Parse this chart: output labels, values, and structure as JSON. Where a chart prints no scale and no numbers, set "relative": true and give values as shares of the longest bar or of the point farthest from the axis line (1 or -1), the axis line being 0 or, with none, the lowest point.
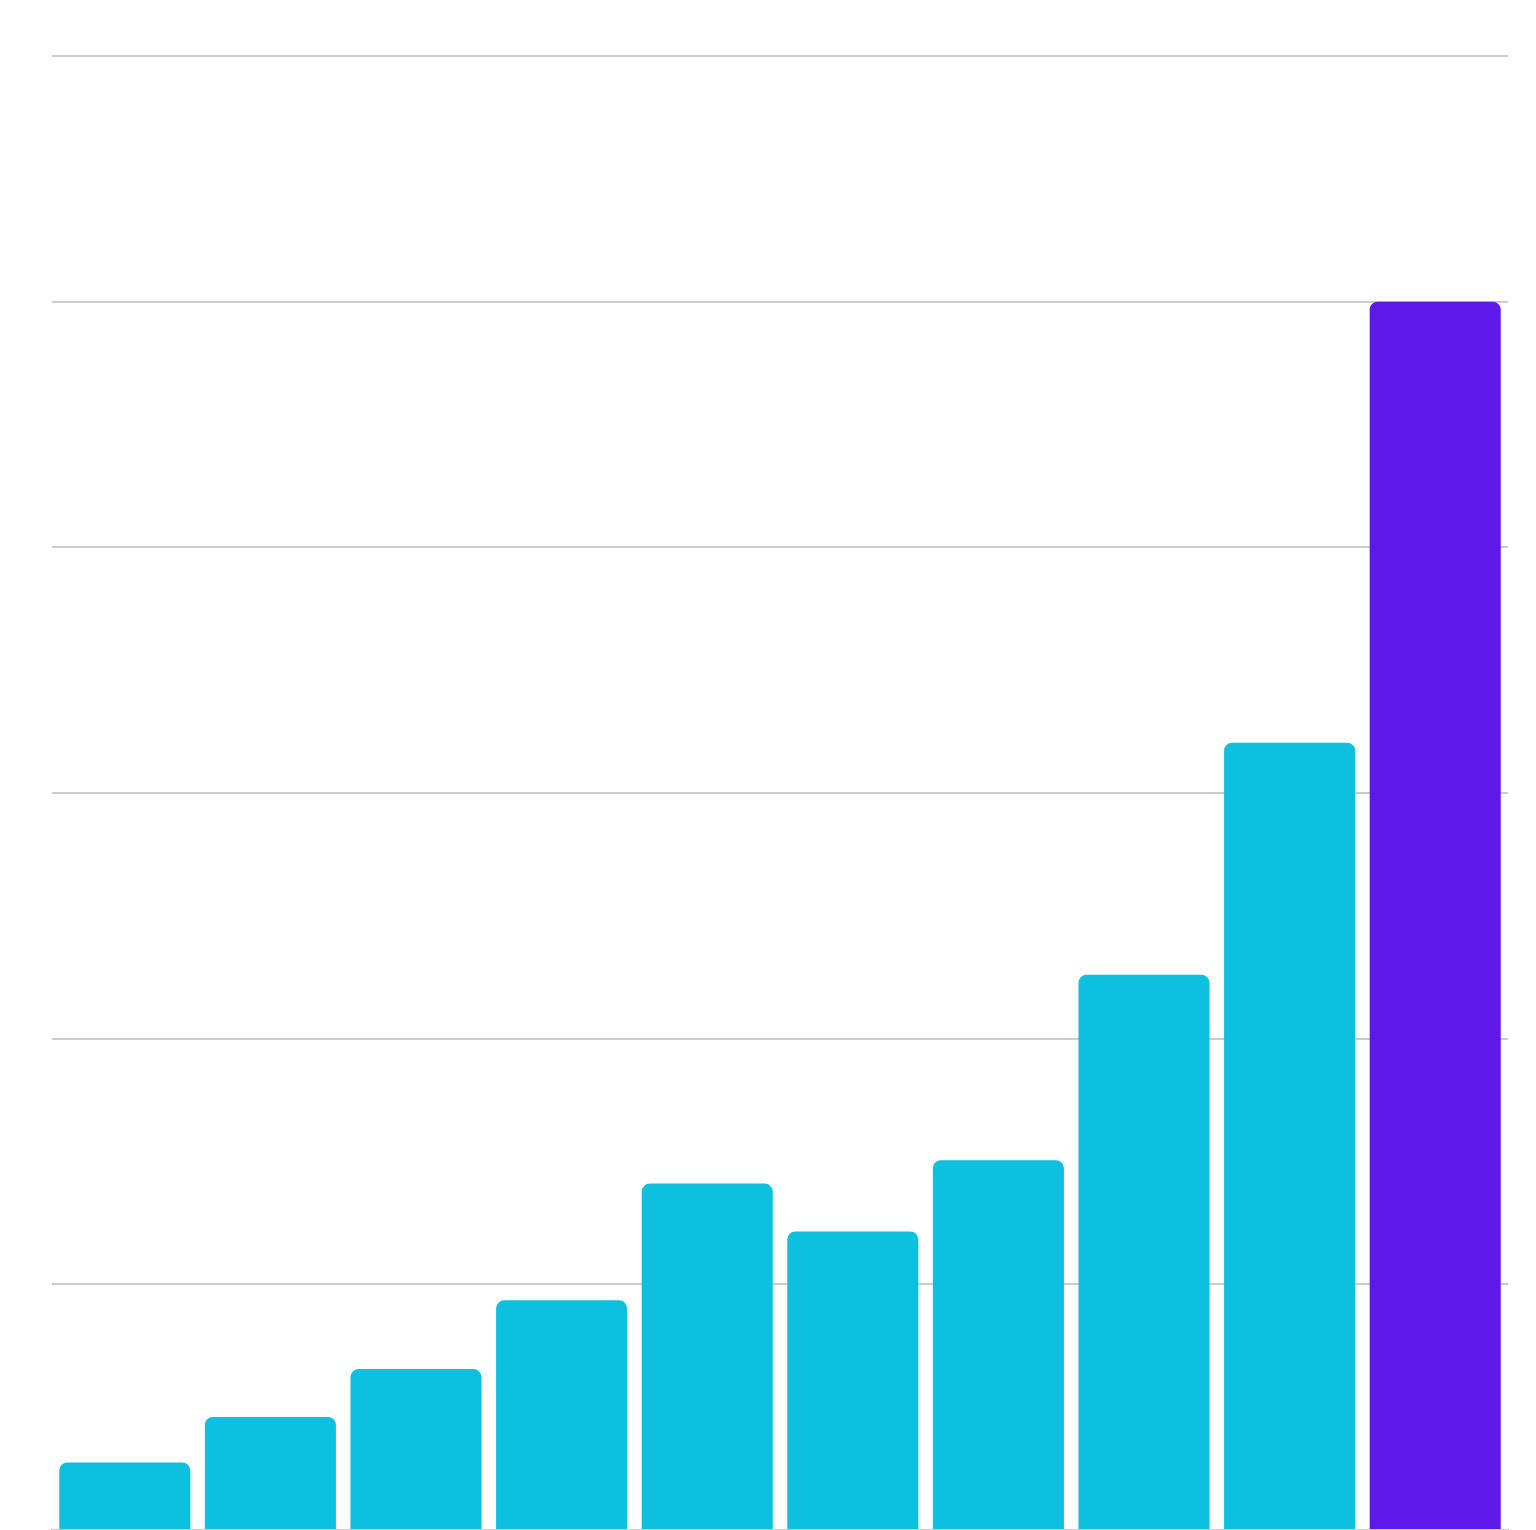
{
  "chart_data": {
    "type": "bar",
    "relative": true,
    "categories": [
      null,
      null,
      null,
      null,
      null,
      null,
      null,
      null,
      null,
      null
    ],
    "values": [
      0.055,
      0.092,
      0.131,
      0.187,
      0.282,
      0.243,
      0.301,
      0.452,
      0.641,
      1
    ],
    "colors": [
      "#0ec0df",
      "#0ec0df",
      "#0ec0df",
      "#0ec0df",
      "#0ec0df",
      "#0ec0df",
      "#0ec0df",
      "#0ec0df",
      "#0ec0df",
      "#5f18ea"
    ],
    "grid": "y"
  }
}
